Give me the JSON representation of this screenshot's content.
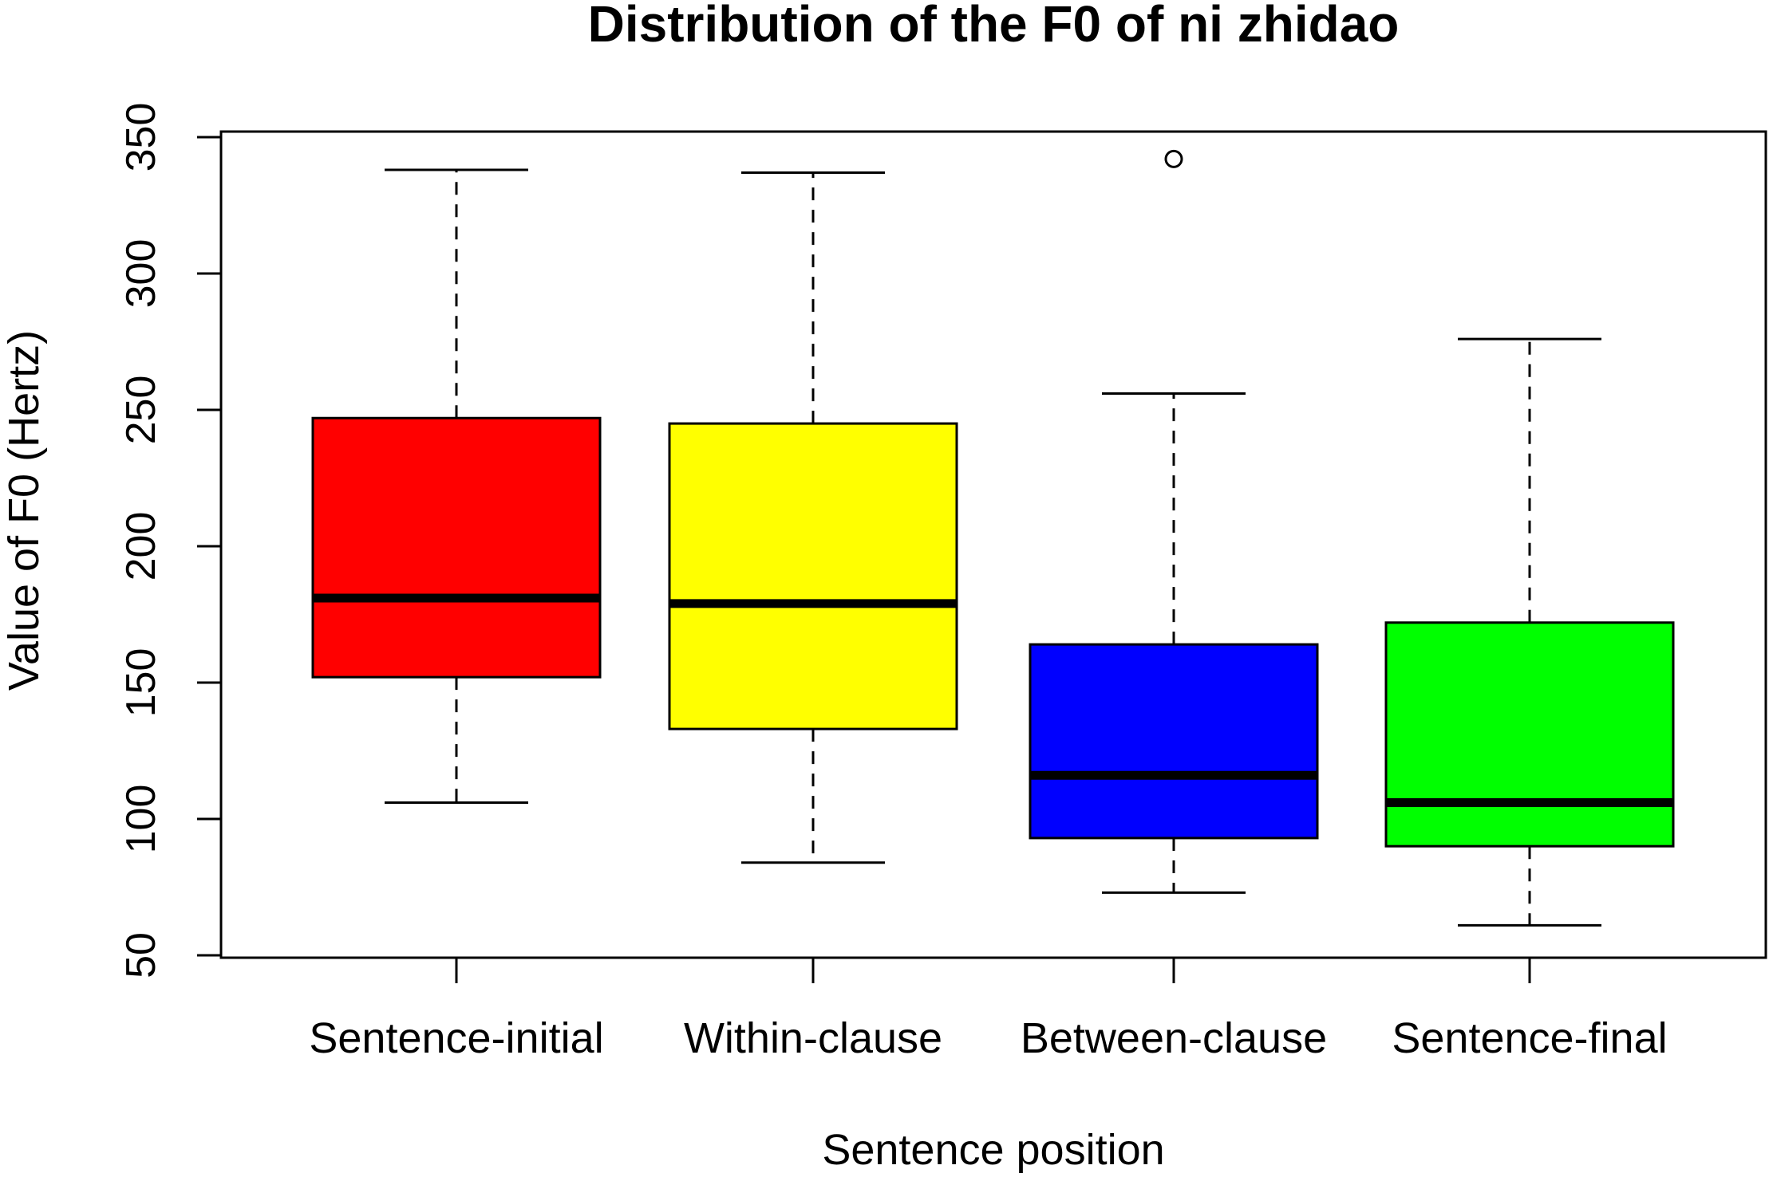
{
  "chart_data": {
    "type": "box",
    "title": "Distribution of the F0 of ni zhidao",
    "xlabel": "Sentence position",
    "ylabel": "Value of F0 (Hertz)",
    "ylim": [
      50,
      350
    ],
    "yticks": [
      50,
      100,
      150,
      200,
      250,
      300,
      350
    ],
    "yticklabels": [
      "50",
      "100",
      "150",
      "200",
      "250",
      "300",
      "350"
    ],
    "grid": false,
    "categories": [
      "Sentence-initial",
      "Within-clause",
      "Between-clause",
      "Sentence-final"
    ],
    "boxes": [
      {
        "category": "Sentence-initial",
        "whisker_low": 106,
        "q1": 152,
        "median": 181,
        "q3": 247,
        "whisker_high": 338,
        "outliers": [],
        "color": "#ff0000"
      },
      {
        "category": "Within-clause",
        "whisker_low": 84,
        "q1": 133,
        "median": 179,
        "q3": 245,
        "whisker_high": 337,
        "outliers": [],
        "color": "#ffff00"
      },
      {
        "category": "Between-clause",
        "whisker_low": 73,
        "q1": 93,
        "median": 116,
        "q3": 164,
        "whisker_high": 256,
        "outliers": [
          342
        ],
        "color": "#0000ff"
      },
      {
        "category": "Sentence-final",
        "whisker_low": 61,
        "q1": 90,
        "median": 106,
        "q3": 172,
        "whisker_high": 276,
        "outliers": [],
        "color": "#00ff00"
      }
    ]
  }
}
